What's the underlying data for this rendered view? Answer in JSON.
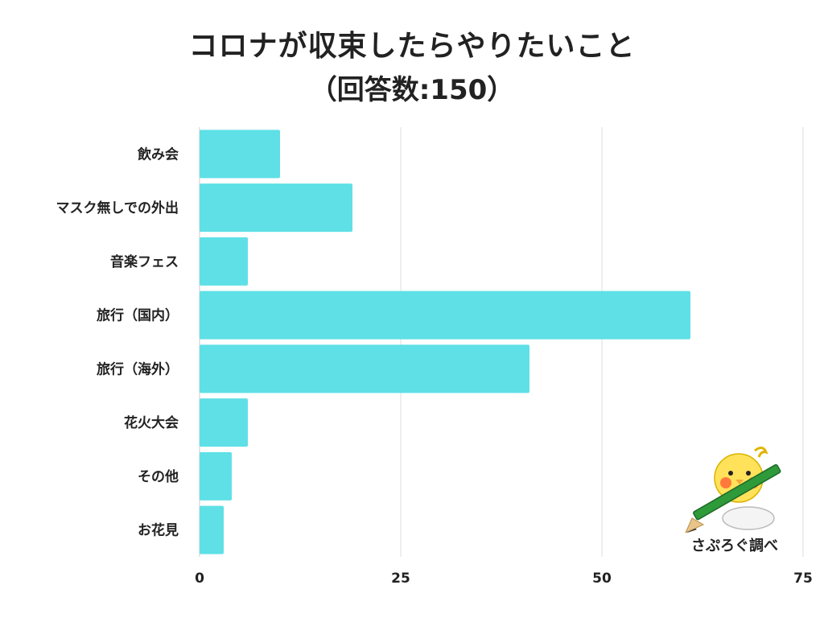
{
  "chart_data": {
    "type": "bar",
    "orientation": "horizontal",
    "title": "コロナが収束したらやりたいこと",
    "subtitle": "（回答数:150）",
    "categories": [
      "飲み会",
      "マスク無しでの外出",
      "音楽フェス",
      "旅行（国内）",
      "旅行（海外）",
      "花火大会",
      "その他",
      "お花見"
    ],
    "values": [
      10,
      19,
      6,
      61,
      41,
      6,
      4,
      3
    ],
    "xlim": [
      0,
      75
    ],
    "xticks": [
      0,
      25,
      50,
      75
    ],
    "xlabel": "",
    "ylabel": "",
    "grid": true,
    "bar_color": "#5ee0e6"
  },
  "watermark": {
    "text": "さぷろぐ調べ",
    "icon": "bird-with-pencil-icon"
  }
}
